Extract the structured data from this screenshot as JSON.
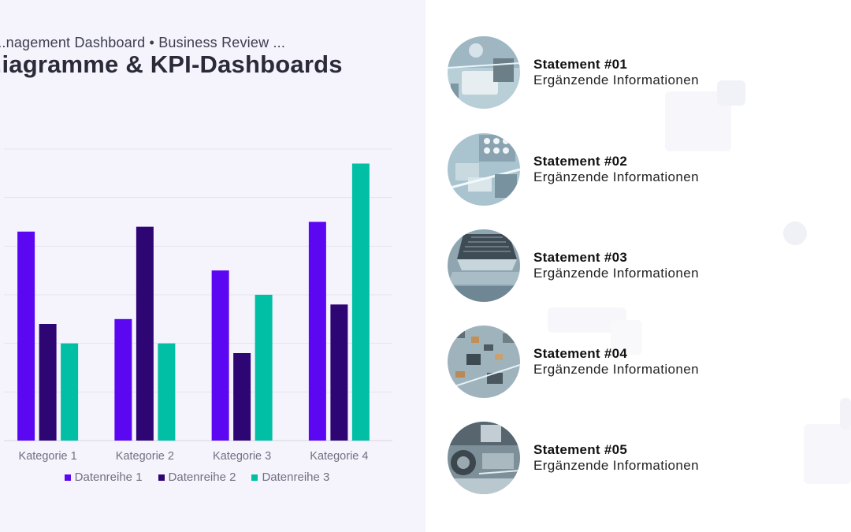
{
  "header": {
    "subtitle": "...nagement Dashboard • Business Review ...",
    "title": "...iagramme & KPI-Dashboards"
  },
  "colors": {
    "series1": "#5b07f2",
    "series2": "#2e0674",
    "series3": "#00bfa5",
    "panel_bg": "#f5f4fd"
  },
  "chart_data": {
    "type": "bar",
    "categories": [
      "Kategorie 1",
      "Kategorie 2",
      "Kategorie 3",
      "Kategorie 4"
    ],
    "series": [
      {
        "name": "Datenreihe 1",
        "values": [
          4.3,
          2.5,
          3.5,
          4.5
        ]
      },
      {
        "name": "Datenreihe 2",
        "values": [
          2.4,
          4.4,
          1.8,
          2.8
        ]
      },
      {
        "name": "Datenreihe 3",
        "values": [
          2.0,
          2.0,
          3.0,
          5.7
        ]
      }
    ],
    "ylim": [
      0,
      6
    ],
    "grid": true,
    "legend": "bottom",
    "title": "",
    "xlabel": "",
    "ylabel": ""
  },
  "statements": [
    {
      "title": "Statement #01",
      "desc": "Ergänzende Informationen",
      "icon": "circuit-board-image"
    },
    {
      "title": "Statement #02",
      "desc": "Ergänzende Informationen",
      "icon": "circuit-board-image"
    },
    {
      "title": "Statement #03",
      "desc": "Ergänzende Informationen",
      "icon": "cpu-chip-image"
    },
    {
      "title": "Statement #04",
      "desc": "Ergänzende Informationen",
      "icon": "circuit-board-image"
    },
    {
      "title": "Statement #05",
      "desc": "Ergänzende Informationen",
      "icon": "circuit-board-image"
    }
  ]
}
